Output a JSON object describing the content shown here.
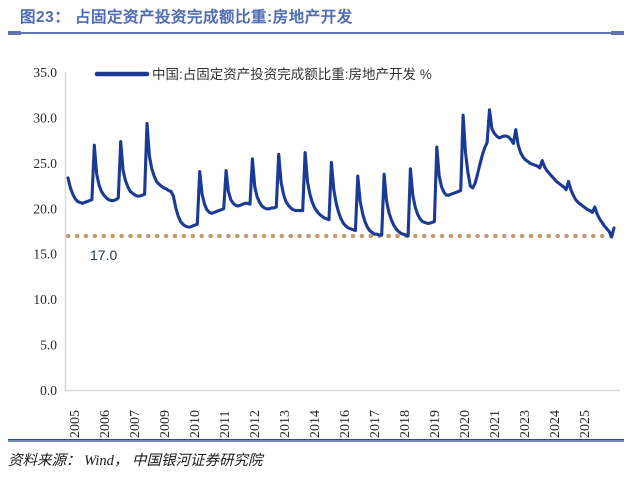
{
  "header": {
    "title": "图23： 占固定资产投资完成额比重:房地产开发"
  },
  "chart_data": {
    "type": "line",
    "title": "占固定资产投资完成额比重:房地产开发",
    "legend_label": "中国:占固定资产投资完成额比重:房地产开发 %",
    "legend_position": "top-left",
    "x_axis": "monthly cumulative values, 2005–2025",
    "xtick_labels": [
      "2005",
      "2006",
      "2007",
      "2009",
      "2010",
      "2011",
      "2012",
      "2013",
      "2014",
      "2016",
      "2017",
      "2018",
      "2019",
      "2020",
      "2021",
      "2023",
      "2024",
      "2025"
    ],
    "ylim": [
      0,
      35
    ],
    "yticks": [
      0,
      5,
      10,
      15,
      20,
      25,
      30,
      35
    ],
    "ytick_labels": [
      "0.0",
      "5.0",
      "10.0",
      "15.0",
      "20.0",
      "25.0",
      "30.0",
      "35.0"
    ],
    "grid": false,
    "reference_line": {
      "value": 17.0,
      "label": "17.0",
      "style": "dotted"
    },
    "series": [
      {
        "name": "中国:占固定资产投资完成额比重:房地产开发 %",
        "values": [
          23.4,
          22.3,
          21.6,
          21.1,
          20.8,
          20.7,
          20.6,
          20.7,
          20.8,
          20.9,
          21.0,
          27.0,
          23.8,
          22.6,
          21.9,
          21.5,
          21.2,
          21.0,
          20.9,
          20.9,
          21.0,
          21.2,
          27.4,
          24.2,
          23.1,
          22.4,
          21.9,
          21.7,
          21.5,
          21.4,
          21.4,
          21.5,
          21.6,
          29.4,
          25.8,
          24.4,
          23.6,
          23.0,
          22.7,
          22.5,
          22.3,
          22.2,
          22.0,
          21.9,
          21.4,
          20.1,
          19.2,
          18.6,
          18.3,
          18.1,
          18.0,
          18.0,
          18.1,
          18.2,
          18.3,
          24.1,
          21.6,
          20.5,
          19.9,
          19.6,
          19.5,
          19.6,
          19.7,
          19.8,
          19.9,
          20.0,
          24.2,
          21.9,
          21.0,
          20.6,
          20.4,
          20.3,
          20.4,
          20.5,
          20.6,
          20.6,
          20.5,
          25.5,
          22.4,
          21.3,
          20.7,
          20.3,
          20.1,
          20.0,
          20.0,
          20.1,
          20.1,
          20.2,
          26.0,
          22.9,
          21.6,
          20.8,
          20.4,
          20.1,
          19.9,
          19.8,
          19.8,
          19.8,
          19.8,
          26.2,
          23.0,
          21.6,
          20.7,
          20.1,
          19.7,
          19.4,
          19.2,
          19.0,
          18.9,
          18.8,
          25.1,
          22.1,
          20.6,
          19.6,
          18.9,
          18.4,
          18.1,
          17.9,
          17.8,
          17.7,
          17.6,
          23.6,
          20.8,
          19.5,
          18.6,
          18.0,
          17.6,
          17.4,
          17.2,
          17.2,
          17.1,
          17.1,
          23.8,
          20.9,
          19.6,
          18.8,
          18.2,
          17.8,
          17.5,
          17.3,
          17.2,
          17.1,
          17.0,
          24.4,
          21.5,
          20.2,
          19.4,
          18.9,
          18.6,
          18.5,
          18.4,
          18.4,
          18.5,
          18.6,
          26.8,
          23.6,
          22.4,
          21.8,
          21.5,
          21.5,
          21.6,
          21.7,
          21.8,
          21.9,
          22.0,
          30.3,
          26.2,
          24.0,
          22.5,
          22.3,
          22.8,
          23.8,
          24.9,
          25.9,
          26.7,
          27.3,
          30.9,
          28.8,
          28.3,
          28.0,
          27.8,
          27.9,
          28.0,
          28.0,
          27.9,
          27.6,
          27.2,
          28.7,
          27.0,
          26.2,
          25.7,
          25.4,
          25.2,
          25.0,
          24.9,
          24.8,
          24.7,
          24.5,
          25.3,
          24.6,
          24.2,
          23.9,
          23.6,
          23.3,
          23.0,
          22.8,
          22.6,
          22.4,
          22.1,
          23.0,
          22.1,
          21.5,
          21.0,
          20.7,
          20.5,
          20.3,
          20.1,
          19.9,
          19.8,
          19.6,
          20.2,
          19.4,
          18.9,
          18.5,
          18.1,
          17.8,
          17.5,
          16.9,
          17.9
        ]
      }
    ]
  },
  "footer": {
    "source": "资料来源： Wind， 中国银河证券研究院"
  },
  "colors": {
    "series_line": "#1B3A96",
    "title_blue": "#4F6BB4",
    "rule_blue": "#5E74B0",
    "reference_tan": "#C49A6B",
    "axis_text": "#262626",
    "plot_border": "#DBDBDB"
  }
}
